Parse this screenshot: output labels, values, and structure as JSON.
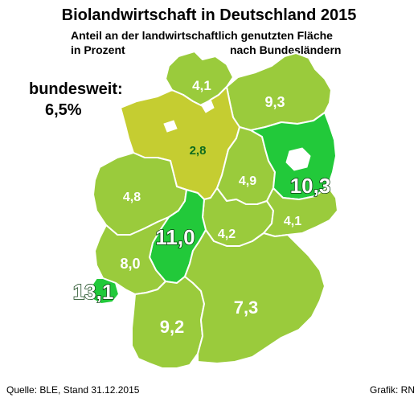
{
  "title": "Biolandwirtschaft in Deutschland 2015",
  "subtitle_line1": "Anteil an der landwirtschaftlich genutzten Fläche",
  "subtitle_line2a": "in Prozent",
  "subtitle_line2b": "nach Bundesländern",
  "national": {
    "label": "bundesweit:",
    "value": "6,5%"
  },
  "regions": [
    {
      "id": "sh",
      "value": "4,1"
    },
    {
      "id": "mv",
      "value": "9,3"
    },
    {
      "id": "ni",
      "value": "2,8"
    },
    {
      "id": "bb",
      "value": "10,3"
    },
    {
      "id": "st",
      "value": "4,9"
    },
    {
      "id": "nw",
      "value": "4,8"
    },
    {
      "id": "he",
      "value": "11,0"
    },
    {
      "id": "th",
      "value": "4,2"
    },
    {
      "id": "sn",
      "value": "4,1"
    },
    {
      "id": "rp",
      "value": "8,0"
    },
    {
      "id": "sl",
      "value": "13,1"
    },
    {
      "id": "by",
      "value": "7,3"
    },
    {
      "id": "bw",
      "value": "9,2"
    }
  ],
  "colors": {
    "light": "#9acb3c",
    "pale": "#c5cd31",
    "highlight": "#22c93a",
    "border": "#ffffff"
  },
  "footer": {
    "source": "Quelle: BLE, Stand 31.12.2015",
    "credit": "Grafik: RN"
  }
}
